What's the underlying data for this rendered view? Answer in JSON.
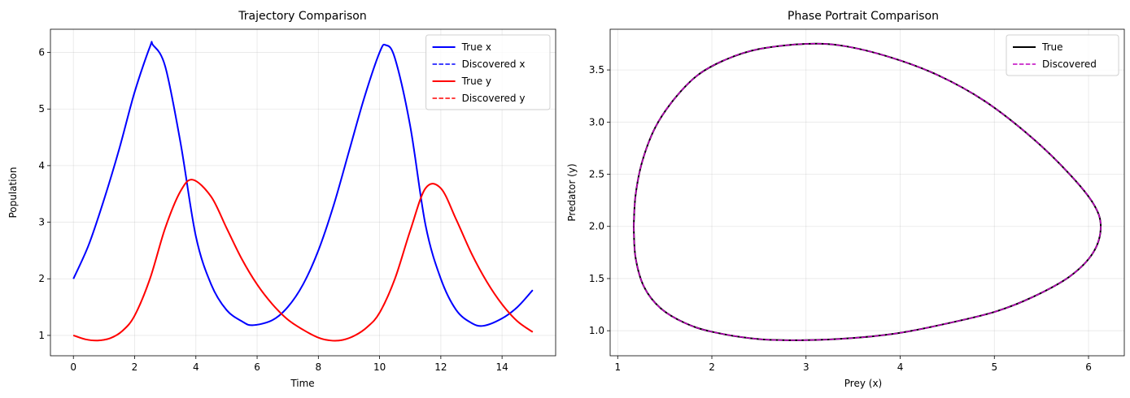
{
  "chart_data": [
    {
      "type": "line",
      "title": "Trajectory Comparison",
      "xlabel": "Time",
      "ylabel": "Population",
      "xlim": [
        -0.75,
        15.75
      ],
      "ylim": [
        0.64,
        6.41
      ],
      "xticks": [
        0,
        2,
        4,
        6,
        8,
        10,
        12,
        14
      ],
      "yticks": [
        1,
        2,
        3,
        4,
        5,
        6
      ],
      "grid": true,
      "legend": "top-right",
      "series": [
        {
          "name": "True x",
          "color": "#0000ff",
          "style": "solid",
          "x": [
            0,
            0.5,
            1,
            1.5,
            2,
            2.5,
            2.6,
            3,
            3.5,
            4,
            4.5,
            5,
            5.5,
            5.85,
            6.5,
            7,
            7.5,
            8,
            8.5,
            9,
            9.5,
            10,
            10.2,
            10.5,
            11,
            11.5,
            12,
            12.5,
            13,
            13.4,
            14,
            14.5,
            15
          ],
          "y": [
            2.0,
            2.6,
            3.4,
            4.3,
            5.3,
            6.1,
            6.13,
            5.75,
            4.4,
            2.75,
            1.9,
            1.45,
            1.25,
            1.18,
            1.27,
            1.5,
            1.9,
            2.5,
            3.3,
            4.25,
            5.2,
            6.0,
            6.13,
            5.9,
            4.7,
            2.95,
            2.0,
            1.45,
            1.22,
            1.17,
            1.3,
            1.5,
            1.8
          ]
        },
        {
          "name": "Discovered x",
          "color": "#0000ff",
          "style": "dashed",
          "x": [
            0,
            0.5,
            1,
            1.5,
            2,
            2.5,
            2.6,
            3,
            3.5,
            4,
            4.5,
            5,
            5.5,
            5.85,
            6.5,
            7,
            7.5,
            8,
            8.5,
            9,
            9.5,
            10,
            10.2,
            10.5,
            11,
            11.5,
            12,
            12.5,
            13,
            13.4,
            14,
            14.5,
            15
          ],
          "y": [
            2.0,
            2.6,
            3.4,
            4.3,
            5.3,
            6.1,
            6.13,
            5.75,
            4.4,
            2.75,
            1.9,
            1.45,
            1.25,
            1.18,
            1.27,
            1.5,
            1.9,
            2.5,
            3.3,
            4.25,
            5.2,
            6.0,
            6.13,
            5.9,
            4.7,
            2.95,
            2.0,
            1.45,
            1.22,
            1.17,
            1.3,
            1.5,
            1.8
          ]
        },
        {
          "name": "True y",
          "color": "#ff0000",
          "style": "solid",
          "x": [
            0,
            0.4,
            0.8,
            1.2,
            1.6,
            2,
            2.5,
            3,
            3.5,
            3.9,
            4.5,
            5,
            5.5,
            6,
            6.5,
            7,
            7.5,
            8,
            8.4,
            8.8,
            9.2,
            9.6,
            10,
            10.5,
            11,
            11.5,
            12,
            12.5,
            13,
            13.5,
            14,
            14.5,
            15
          ],
          "y": [
            1.0,
            0.93,
            0.91,
            0.95,
            1.08,
            1.35,
            2.0,
            2.9,
            3.55,
            3.75,
            3.45,
            2.9,
            2.35,
            1.9,
            1.55,
            1.28,
            1.1,
            0.96,
            0.91,
            0.92,
            1.0,
            1.15,
            1.4,
            2.0,
            2.85,
            3.6,
            3.6,
            3.05,
            2.45,
            1.95,
            1.55,
            1.25,
            1.06
          ]
        },
        {
          "name": "Discovered y",
          "color": "#ff0000",
          "style": "dashed",
          "x": [
            0,
            0.4,
            0.8,
            1.2,
            1.6,
            2,
            2.5,
            3,
            3.5,
            3.9,
            4.5,
            5,
            5.5,
            6,
            6.5,
            7,
            7.5,
            8,
            8.4,
            8.8,
            9.2,
            9.6,
            10,
            10.5,
            11,
            11.5,
            12,
            12.5,
            13,
            13.5,
            14,
            14.5,
            15
          ],
          "y": [
            1.0,
            0.93,
            0.91,
            0.95,
            1.08,
            1.35,
            2.0,
            2.9,
            3.55,
            3.75,
            3.45,
            2.9,
            2.35,
            1.9,
            1.55,
            1.28,
            1.1,
            0.96,
            0.91,
            0.92,
            1.0,
            1.15,
            1.4,
            2.0,
            2.85,
            3.6,
            3.6,
            3.05,
            2.45,
            1.95,
            1.55,
            1.25,
            1.06
          ]
        }
      ]
    },
    {
      "type": "line",
      "title": "Phase Portrait Comparison",
      "xlabel": "Prey (x)",
      "ylabel": "Predator (y)",
      "xlim": [
        0.92,
        6.38
      ],
      "ylim": [
        0.76,
        3.89
      ],
      "xticks": [
        1,
        2,
        3,
        4,
        5,
        6
      ],
      "yticks": [
        1.0,
        1.5,
        2.0,
        2.5,
        3.0,
        3.5
      ],
      "ytick_labels": [
        "1.0",
        "1.5",
        "2.0",
        "2.5",
        "3.0",
        "3.5"
      ],
      "grid": true,
      "legend": "top-right",
      "series": [
        {
          "name": "True",
          "color": "#000000",
          "style": "solid",
          "x": [
            1.17,
            1.19,
            1.26,
            1.4,
            1.6,
            1.85,
            2.15,
            2.5,
            3.0,
            3.4,
            3.9,
            4.4,
            4.9,
            5.4,
            5.8,
            6.05,
            6.13,
            6.05,
            5.8,
            5.4,
            5.0,
            4.5,
            4.0,
            3.5,
            3.0,
            2.5,
            2.0,
            1.7,
            1.45,
            1.28,
            1.19,
            1.17
          ],
          "y": [
            2.0,
            2.3,
            2.62,
            2.95,
            3.22,
            3.45,
            3.6,
            3.7,
            3.75,
            3.73,
            3.62,
            3.45,
            3.2,
            2.85,
            2.5,
            2.22,
            2.0,
            1.75,
            1.52,
            1.32,
            1.18,
            1.07,
            0.98,
            0.93,
            0.91,
            0.92,
            0.99,
            1.08,
            1.22,
            1.42,
            1.7,
            2.0
          ]
        },
        {
          "name": "Discovered",
          "color": "#bf00bf",
          "style": "dashed",
          "x": [
            1.17,
            1.19,
            1.26,
            1.4,
            1.6,
            1.85,
            2.15,
            2.5,
            3.0,
            3.4,
            3.9,
            4.4,
            4.9,
            5.4,
            5.8,
            6.05,
            6.13,
            6.05,
            5.8,
            5.4,
            5.0,
            4.5,
            4.0,
            3.5,
            3.0,
            2.5,
            2.0,
            1.7,
            1.45,
            1.28,
            1.19,
            1.17
          ],
          "y": [
            2.0,
            2.3,
            2.62,
            2.95,
            3.22,
            3.45,
            3.6,
            3.7,
            3.75,
            3.73,
            3.62,
            3.45,
            3.2,
            2.85,
            2.5,
            2.22,
            2.0,
            1.75,
            1.52,
            1.32,
            1.18,
            1.07,
            0.98,
            0.93,
            0.91,
            0.92,
            0.99,
            1.08,
            1.22,
            1.42,
            1.7,
            2.0
          ]
        }
      ]
    }
  ]
}
